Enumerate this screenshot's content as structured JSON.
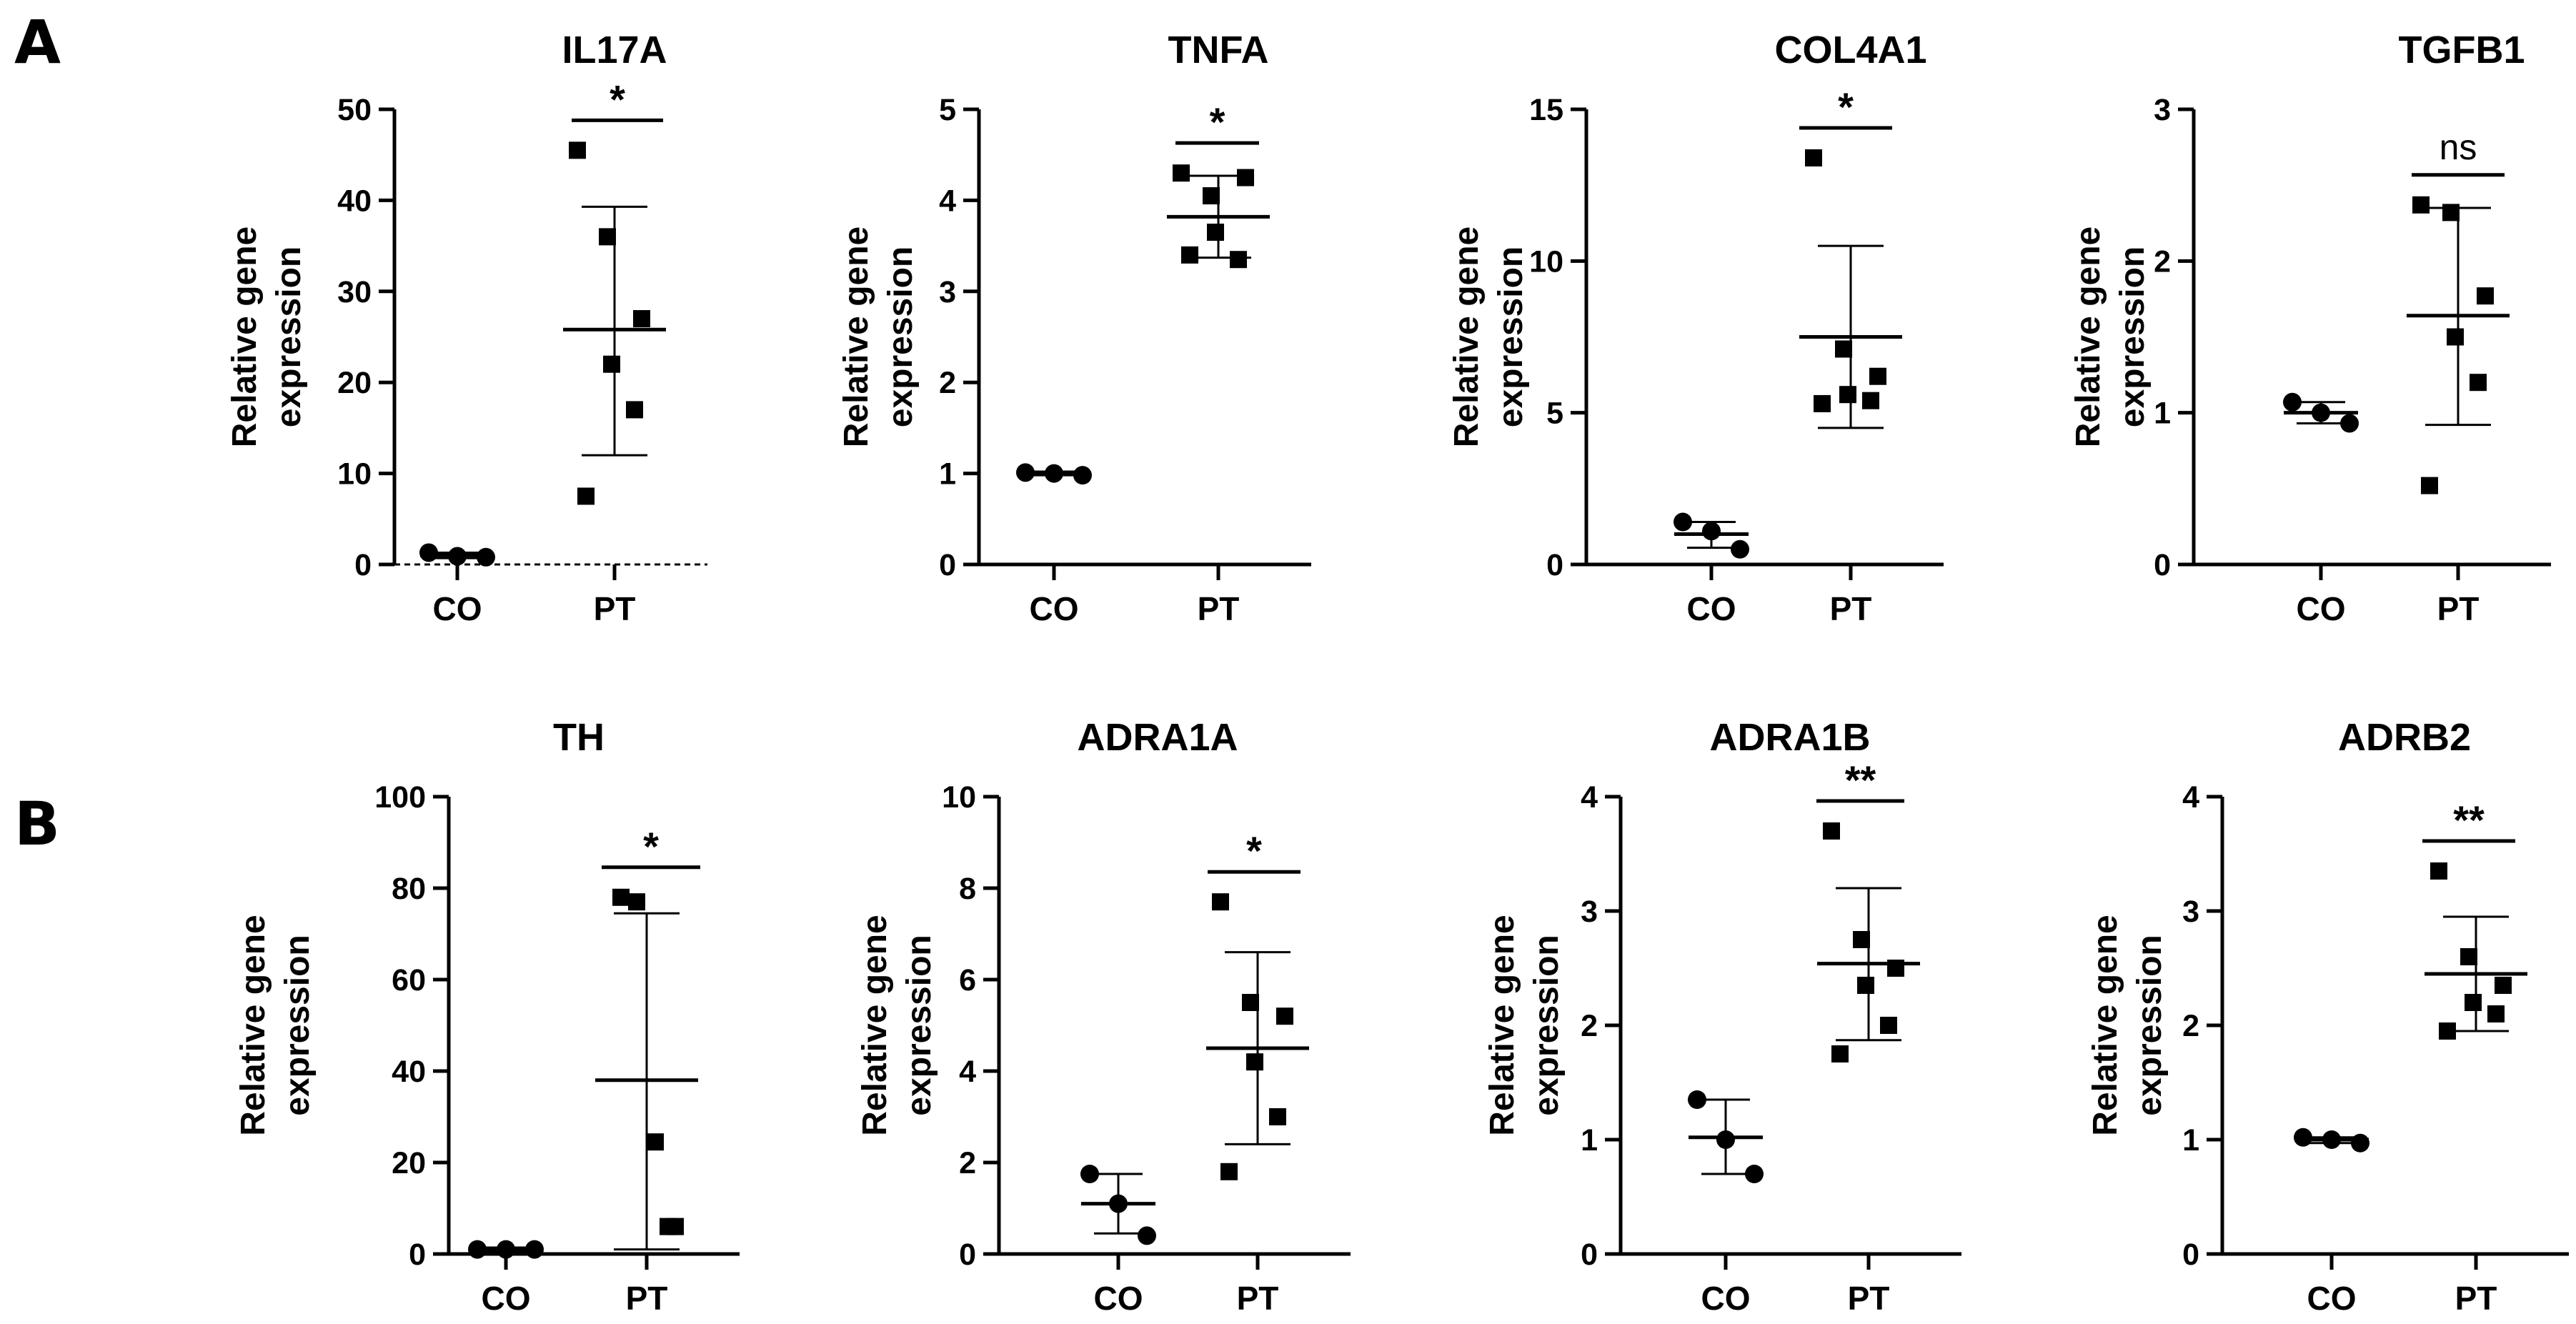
{
  "panel_labels": [
    "A",
    "B"
  ],
  "chart_data": [
    {
      "type": "scatter",
      "panel": "A",
      "title": "IL17A",
      "ylabel": [
        "Relative gene",
        "expression"
      ],
      "categories": [
        "CO",
        "PT"
      ],
      "ylim": [
        0,
        50
      ],
      "yticks": [
        0,
        10,
        20,
        30,
        40,
        50
      ],
      "dashed_baseline": true,
      "groups": [
        {
          "name": "CO",
          "marker": "circle",
          "points": [
            1.3,
            0.9,
            0.8
          ],
          "mean": 1.0,
          "sd": [
            0.7,
            1.3
          ]
        },
        {
          "name": "PT",
          "marker": "square",
          "points": [
            45.5,
            36,
            27,
            22,
            17,
            7.5
          ],
          "mean": 25.8,
          "sd": [
            12,
            39.3
          ]
        }
      ],
      "significance": "*"
    },
    {
      "type": "scatter",
      "panel": "A",
      "title": "TNFA",
      "ylabel": [
        "Relative gene",
        "expression"
      ],
      "categories": [
        "CO",
        "PT"
      ],
      "ylim": [
        0,
        5
      ],
      "yticks": [
        0,
        1,
        2,
        3,
        4,
        5
      ],
      "groups": [
        {
          "name": "CO",
          "marker": "circle",
          "points": [
            1.01,
            1.0,
            0.98
          ],
          "mean": 1.0,
          "sd": [
            0.98,
            1.02
          ]
        },
        {
          "name": "PT",
          "marker": "square",
          "points": [
            4.3,
            4.05,
            4.25,
            3.65,
            3.35,
            3.4
          ],
          "mean": 3.82,
          "sd": [
            3.37,
            4.27
          ]
        }
      ],
      "significance": "*"
    },
    {
      "type": "scatter",
      "panel": "A",
      "title": "COL4A1",
      "ylabel": [
        "Relative gene",
        "expression"
      ],
      "categories": [
        "CO",
        "PT"
      ],
      "ylim": [
        0,
        15
      ],
      "yticks": [
        0,
        5,
        10,
        15
      ],
      "groups": [
        {
          "name": "CO",
          "marker": "circle",
          "points": [
            1.4,
            1.1,
            0.5
          ],
          "mean": 1.0,
          "sd": [
            0.55,
            1.4
          ]
        },
        {
          "name": "PT",
          "marker": "square",
          "points": [
            13.4,
            7.1,
            6.2,
            5.6,
            5.4,
            5.3
          ],
          "mean": 7.5,
          "sd": [
            4.5,
            10.5
          ]
        }
      ],
      "significance": "*"
    },
    {
      "type": "scatter",
      "panel": "A",
      "title": "TGFB1",
      "ylabel": [
        "Relative gene",
        "expression"
      ],
      "categories": [
        "CO",
        "PT"
      ],
      "ylim": [
        0,
        3
      ],
      "yticks": [
        0,
        1,
        2,
        3
      ],
      "groups": [
        {
          "name": "CO",
          "marker": "circle",
          "points": [
            1.07,
            1.0,
            0.93
          ],
          "mean": 1.0,
          "sd": [
            0.93,
            1.07
          ]
        },
        {
          "name": "PT",
          "marker": "square",
          "points": [
            2.37,
            2.32,
            1.77,
            1.5,
            1.2,
            0.52
          ],
          "mean": 1.64,
          "sd": [
            0.92,
            2.35
          ]
        }
      ],
      "significance": "ns"
    },
    {
      "type": "scatter",
      "panel": "B",
      "title": "TH",
      "ylabel": [
        "Relative gene",
        "expression"
      ],
      "categories": [
        "CO",
        "PT"
      ],
      "ylim": [
        0,
        100
      ],
      "yticks": [
        0,
        20,
        40,
        60,
        80,
        100
      ],
      "groups": [
        {
          "name": "CO",
          "marker": "circle",
          "points": [
            1,
            1,
            1
          ],
          "mean": 1.0,
          "sd": [
            0.6,
            1.4
          ]
        },
        {
          "name": "PT",
          "marker": "square",
          "points": [
            78,
            77,
            24.5,
            6,
            6
          ],
          "mean": 38,
          "sd": [
            1,
            74.5
          ]
        }
      ],
      "significance": "*"
    },
    {
      "type": "scatter",
      "panel": "B",
      "title": "ADRA1A",
      "ylabel": [
        "Relative gene",
        "expression"
      ],
      "categories": [
        "CO",
        "PT"
      ],
      "ylim": [
        0,
        10
      ],
      "yticks": [
        0,
        2,
        4,
        6,
        8,
        10
      ],
      "groups": [
        {
          "name": "CO",
          "marker": "circle",
          "points": [
            1.75,
            1.1,
            0.4
          ],
          "mean": 1.1,
          "sd": [
            0.45,
            1.75
          ]
        },
        {
          "name": "PT",
          "marker": "square",
          "points": [
            7.7,
            5.5,
            5.2,
            4.2,
            3.0,
            1.8
          ],
          "mean": 4.5,
          "sd": [
            2.4,
            6.6
          ]
        }
      ],
      "significance": "*"
    },
    {
      "type": "scatter",
      "panel": "B",
      "title": "ADRA1B",
      "ylabel": [
        "Relative gene",
        "expression"
      ],
      "categories": [
        "CO",
        "PT"
      ],
      "ylim": [
        0,
        4
      ],
      "yticks": [
        0,
        1,
        2,
        3,
        4
      ],
      "groups": [
        {
          "name": "CO",
          "marker": "circle",
          "points": [
            1.35,
            1.0,
            0.7
          ],
          "mean": 1.02,
          "sd": [
            0.7,
            1.35
          ]
        },
        {
          "name": "PT",
          "marker": "square",
          "points": [
            3.7,
            2.75,
            2.5,
            2.35,
            2.0,
            1.75
          ],
          "mean": 2.54,
          "sd": [
            1.87,
            3.2
          ]
        }
      ],
      "significance": "**"
    },
    {
      "type": "scatter",
      "panel": "B",
      "title": "ADRB2",
      "ylabel": [
        "Relative gene",
        "expression"
      ],
      "categories": [
        "CO",
        "PT"
      ],
      "ylim": [
        0,
        4
      ],
      "yticks": [
        0,
        1,
        2,
        3,
        4
      ],
      "groups": [
        {
          "name": "CO",
          "marker": "circle",
          "points": [
            1.02,
            1.0,
            0.97
          ],
          "mean": 1.0,
          "sd": [
            0.97,
            1.02
          ]
        },
        {
          "name": "PT",
          "marker": "square",
          "points": [
            3.35,
            2.6,
            2.35,
            2.2,
            2.1,
            1.95
          ],
          "mean": 2.45,
          "sd": [
            1.95,
            2.95
          ]
        }
      ],
      "significance": "**"
    }
  ]
}
